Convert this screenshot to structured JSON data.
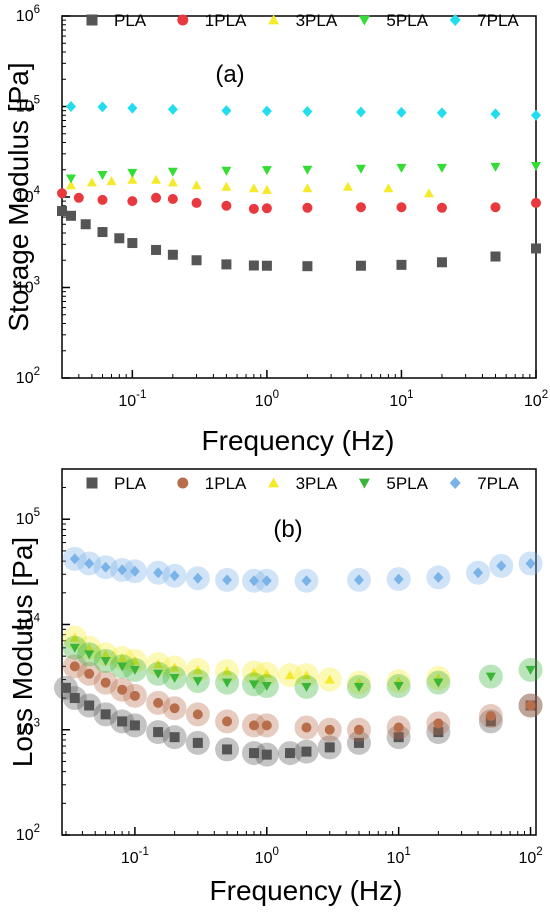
{
  "chart_data": [
    {
      "type": "scatter",
      "panel_label": "(a)",
      "xlabel": "Frequency (Hz)",
      "ylabel": "Storage Modulus [Pa]",
      "xscale": "log",
      "yscale": "log",
      "xlim": [
        0.03,
        100
      ],
      "ylim": [
        100,
        1000000
      ],
      "xticks": [
        {
          "base": "10",
          "exp": "-1"
        },
        {
          "base": "10",
          "exp": "0"
        },
        {
          "base": "10",
          "exp": "1"
        },
        {
          "base": "10",
          "exp": "2"
        }
      ],
      "yticks": [
        {
          "base": "10",
          "exp": "2"
        },
        {
          "base": "10",
          "exp": "3"
        },
        {
          "base": "10",
          "exp": "4"
        },
        {
          "base": "10",
          "exp": "5"
        },
        {
          "base": "10",
          "exp": "6"
        }
      ],
      "legend_position": "top",
      "series": [
        {
          "name": "PLA",
          "color": "#555555",
          "marker": "square",
          "x": [
            0.03,
            0.035,
            0.045,
            0.06,
            0.08,
            0.1,
            0.15,
            0.2,
            0.3,
            0.5,
            0.8,
            1,
            2,
            5,
            10,
            20,
            50,
            100
          ],
          "y": [
            7000,
            6200,
            5000,
            4100,
            3500,
            3100,
            2600,
            2300,
            2000,
            1800,
            1750,
            1740,
            1720,
            1740,
            1780,
            1900,
            2200,
            2700
          ]
        },
        {
          "name": "1PLA",
          "color": "#e8393e",
          "marker": "circle",
          "x": [
            0.03,
            0.04,
            0.06,
            0.1,
            0.15,
            0.2,
            0.3,
            0.5,
            0.8,
            1,
            2,
            5,
            10,
            20,
            50,
            100
          ],
          "y": [
            11000,
            9800,
            9300,
            9000,
            9800,
            9500,
            8600,
            8000,
            7400,
            7500,
            7600,
            7700,
            7700,
            7600,
            7700,
            8600
          ]
        },
        {
          "name": "3PLA",
          "color": "#f5ea2a",
          "marker": "triangle-up",
          "x": [
            0.035,
            0.05,
            0.07,
            0.1,
            0.15,
            0.2,
            0.3,
            0.5,
            0.8,
            1,
            2,
            4,
            8,
            16
          ],
          "y": [
            13500,
            14500,
            15000,
            15500,
            15500,
            14500,
            13500,
            13000,
            12500,
            12000,
            12500,
            13000,
            12500,
            11000
          ]
        },
        {
          "name": "5PLA",
          "color": "#33dd33",
          "marker": "triangle-down",
          "x": [
            0.035,
            0.06,
            0.1,
            0.2,
            0.5,
            1,
            2,
            5,
            10,
            20,
            50,
            100
          ],
          "y": [
            16000,
            17500,
            18500,
            19000,
            19500,
            19800,
            20000,
            20500,
            21000,
            21000,
            21500,
            22000
          ]
        },
        {
          "name": "7PLA",
          "color": "#22ddee",
          "marker": "diamond",
          "x": [
            0.035,
            0.06,
            0.1,
            0.2,
            0.5,
            1,
            2,
            5,
            10,
            20,
            50,
            100
          ],
          "y": [
            100000,
            99000,
            96000,
            93000,
            90000,
            89000,
            88000,
            87000,
            86000,
            85000,
            83000,
            80000
          ]
        }
      ]
    },
    {
      "type": "scatter",
      "panel_label": "(b)",
      "xlabel": "Frequency (Hz)",
      "ylabel": "Loss Modulus [Pa]",
      "xscale": "log",
      "yscale": "log",
      "xlim": [
        0.028,
        110
      ],
      "ylim": [
        100,
        300000
      ],
      "xticks": [
        {
          "base": "10",
          "exp": "-1"
        },
        {
          "base": "10",
          "exp": "0"
        },
        {
          "base": "10",
          "exp": "1"
        },
        {
          "base": "10",
          "exp": "2"
        }
      ],
      "yticks": [
        {
          "base": "10",
          "exp": "2"
        },
        {
          "base": "10",
          "exp": "3"
        },
        {
          "base": "10",
          "exp": "4"
        },
        {
          "base": "10",
          "exp": "5"
        }
      ],
      "legend_position": "top",
      "series": [
        {
          "name": "PLA",
          "color": "#555555",
          "marker": "square",
          "x": [
            0.03,
            0.035,
            0.045,
            0.06,
            0.08,
            0.1,
            0.15,
            0.2,
            0.3,
            0.5,
            0.8,
            1,
            1.5,
            2,
            3,
            5,
            10,
            20,
            50,
            100
          ],
          "y": [
            2500,
            2000,
            1700,
            1400,
            1200,
            1100,
            950,
            850,
            750,
            650,
            600,
            580,
            600,
            620,
            680,
            750,
            850,
            950,
            1200,
            1700
          ]
        },
        {
          "name": "1PLA",
          "color": "#b86e4b",
          "marker": "circle",
          "x": [
            0.035,
            0.045,
            0.06,
            0.08,
            0.1,
            0.15,
            0.2,
            0.3,
            0.5,
            0.8,
            1,
            2,
            3,
            5,
            10,
            20,
            50,
            100
          ],
          "y": [
            4000,
            3400,
            2800,
            2400,
            2100,
            1800,
            1600,
            1400,
            1200,
            1100,
            1100,
            1050,
            1000,
            1000,
            1050,
            1150,
            1350,
            1700
          ]
        },
        {
          "name": "3PLA",
          "color": "#f5ea2a",
          "marker": "triangle-up",
          "x": [
            0.035,
            0.045,
            0.06,
            0.08,
            0.1,
            0.15,
            0.2,
            0.3,
            0.5,
            0.8,
            1,
            1.5,
            2,
            3,
            5,
            10,
            20
          ],
          "y": [
            7500,
            6000,
            5200,
            4800,
            4500,
            4200,
            3900,
            3700,
            3600,
            3500,
            3400,
            3300,
            3300,
            3000,
            2800,
            2900,
            3100
          ]
        },
        {
          "name": "5PLA",
          "color": "#3ab53a",
          "marker": "triangle-down",
          "x": [
            0.035,
            0.045,
            0.06,
            0.08,
            0.1,
            0.15,
            0.2,
            0.3,
            0.5,
            0.8,
            1,
            2,
            5,
            10,
            20,
            50,
            100
          ],
          "y": [
            6000,
            5200,
            4500,
            4000,
            3700,
            3400,
            3100,
            2900,
            2800,
            2700,
            2600,
            2550,
            2550,
            2600,
            2800,
            3200,
            3700
          ]
        },
        {
          "name": "7PLA",
          "color": "#7ab3e8",
          "marker": "diamond",
          "x": [
            0.035,
            0.045,
            0.06,
            0.08,
            0.1,
            0.15,
            0.2,
            0.3,
            0.5,
            0.8,
            1,
            2,
            5,
            10,
            20,
            40,
            60,
            100
          ],
          "y": [
            42000,
            38000,
            35000,
            33000,
            32000,
            31000,
            29000,
            27500,
            26500,
            26000,
            26000,
            26000,
            26500,
            27000,
            28000,
            31000,
            36000,
            38000
          ]
        }
      ]
    }
  ]
}
